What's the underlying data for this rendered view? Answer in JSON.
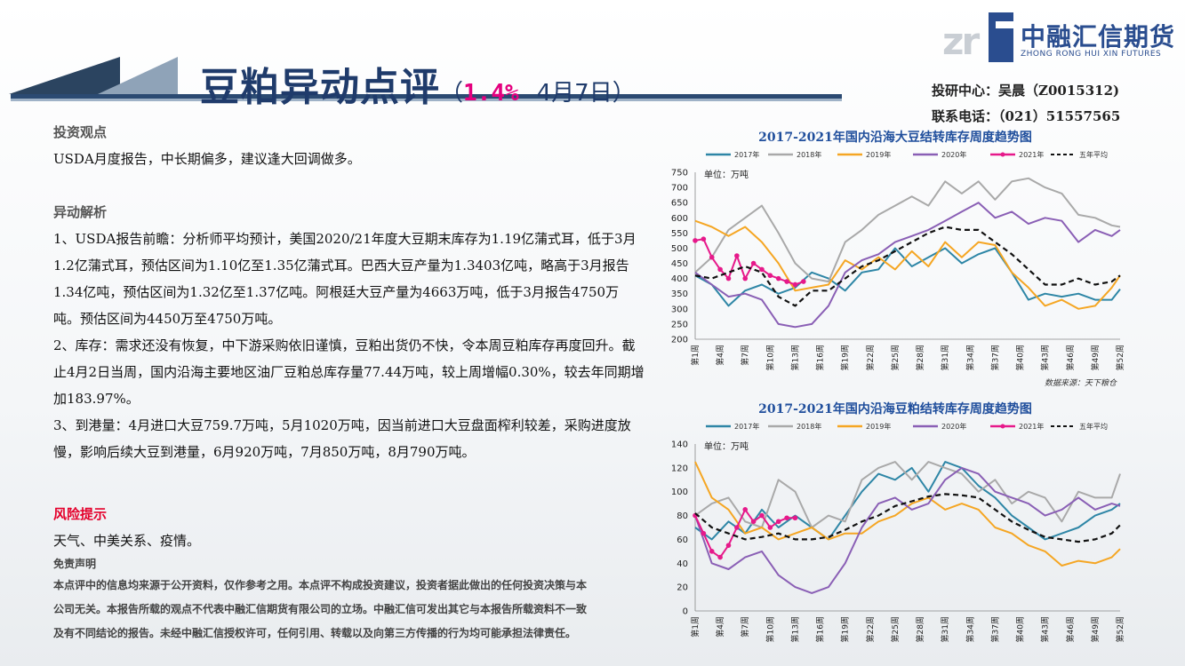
{
  "header": {
    "title_main": "豆粕异动点评",
    "paren_open": "（",
    "pct": "1.4%",
    "date": "4月7日）"
  },
  "logo": {
    "mark": "zr",
    "cn": "中融汇信期货",
    "en": "ZHONG RONG HUI XIN FUTURES"
  },
  "contact": {
    "line1": "投研中心：吴晨（Z0015312)",
    "line2": "联系电话：（021）51557565"
  },
  "content": {
    "view_head": "投资观点",
    "view_text": "USDA月度报告，中长期偏多，建议逢大回调做多。",
    "analysis_head": "异动解析",
    "p1": "1、USDA报告前瞻：分析师平均预计，美国2020/21年度大豆期末库存为1.19亿蒲式耳，低于3月1.2亿蒲式耳，预估区间为1.10亿至1.35亿蒲式耳。巴西大豆产量为1.3403亿吨，略高于3月报告1.34亿吨，预估区间为1.32亿至1.37亿吨。阿根廷大豆产量为4663万吨，低于3月报告4750万吨。预估区间为4450万至4750万吨。",
    "p2": "2、库存：需求还没有恢复，中下游采购依旧谨慎，豆粕出货仍不快，令本周豆粕库存再度回升。截止4月2日当周，国内沿海主要地区油厂豆粕总库存量77.44万吨，较上周增幅0.30%，较去年同期增加183.97%。",
    "p3": "3、到港量：4月进口大豆759.7万吨，5月1020万吨，因当前进口大豆盘面榨利较差，采购进度放慢，影响后续大豆到港量，6月920万吨，7月850万吨，8月790万吨。",
    "risk_head": "风险提示",
    "risk_text": "天气、中美关系、疫情。",
    "disc_head": "免责声明",
    "disc_text": "本点评中的信息均来源于公开资料，仅作参考之用。本点评不构成投资建议，投资者据此做出的任何投资决策与本公司无关。本报告所载的观点不代表中融汇信期货有限公司的立场。中融汇信可发出其它与本报告所载资料不一致及有不同结论的报告。未经中融汇信授权许可，任何引用、转载以及向第三方传播的行为均可能承担法律责任。"
  },
  "colors": {
    "2017": "#2e86a6",
    "2018": "#a9a9a9",
    "2019": "#f5a623",
    "2020": "#8a5fb5",
    "2021": "#e6198a",
    "avg": "#111111"
  },
  "chart_data": [
    {
      "type": "line",
      "title": "2017-2021年国内沿海大豆结转库存周度趋势图",
      "unit_label": "单位：万吨",
      "source": "数据来源：天下粮仓",
      "ylim": [
        200,
        750
      ],
      "yticks": [
        200,
        250,
        300,
        350,
        400,
        450,
        500,
        550,
        600,
        650,
        700,
        750
      ],
      "xticks": [
        "第1周",
        "第4周",
        "第7周",
        "第10周",
        "第13周",
        "第16周",
        "第19周",
        "第22周",
        "第25周",
        "第28周",
        "第31周",
        "第34周",
        "第37周",
        "第40周",
        "第43周",
        "第46周",
        "第49周",
        "第52周"
      ],
      "xtick_weeks": [
        1,
        4,
        7,
        10,
        13,
        16,
        19,
        22,
        25,
        28,
        31,
        34,
        37,
        40,
        43,
        46,
        49,
        52
      ],
      "legend_position": "top",
      "series": [
        {
          "name": "2017年",
          "key": "2017",
          "x": [
            1,
            3,
            5,
            7,
            9,
            11,
            13,
            15,
            17,
            19,
            21,
            23,
            25,
            27,
            29,
            31,
            33,
            35,
            37,
            39,
            41,
            43,
            45,
            47,
            49,
            51,
            52
          ],
          "values": [
            410,
            380,
            310,
            360,
            380,
            350,
            370,
            420,
            400,
            360,
            420,
            430,
            500,
            440,
            470,
            500,
            450,
            480,
            500,
            420,
            330,
            350,
            340,
            350,
            330,
            330,
            365
          ]
        },
        {
          "name": "2018年",
          "key": "2018",
          "x": [
            1,
            3,
            5,
            7,
            9,
            11,
            13,
            15,
            17,
            19,
            21,
            23,
            25,
            27,
            29,
            31,
            33,
            35,
            37,
            39,
            41,
            43,
            45,
            47,
            49,
            51,
            52
          ],
          "values": [
            420,
            470,
            560,
            600,
            640,
            550,
            450,
            400,
            390,
            520,
            560,
            610,
            640,
            670,
            640,
            720,
            680,
            720,
            660,
            720,
            730,
            700,
            680,
            610,
            600,
            575,
            570
          ]
        },
        {
          "name": "2019年",
          "key": "2019",
          "x": [
            1,
            3,
            5,
            7,
            9,
            11,
            13,
            15,
            17,
            19,
            21,
            23,
            25,
            27,
            29,
            31,
            33,
            35,
            37,
            39,
            41,
            43,
            45,
            47,
            49,
            51,
            52
          ],
          "values": [
            590,
            570,
            540,
            570,
            520,
            450,
            360,
            370,
            380,
            460,
            430,
            470,
            430,
            490,
            440,
            520,
            470,
            520,
            510,
            420,
            370,
            310,
            330,
            300,
            310,
            370,
            410
          ]
        },
        {
          "name": "2020年",
          "key": "2020",
          "x": [
            1,
            3,
            5,
            7,
            9,
            11,
            13,
            15,
            17,
            19,
            21,
            23,
            25,
            27,
            29,
            31,
            33,
            35,
            37,
            39,
            41,
            43,
            45,
            47,
            49,
            51,
            52
          ],
          "values": [
            420,
            380,
            340,
            350,
            330,
            250,
            240,
            250,
            310,
            420,
            460,
            480,
            520,
            540,
            560,
            590,
            620,
            650,
            600,
            620,
            580,
            600,
            590,
            520,
            560,
            540,
            560
          ]
        },
        {
          "name": "2021年",
          "key": "2021",
          "x": [
            1,
            2,
            3,
            4,
            5,
            6,
            7,
            8,
            9,
            10,
            11,
            12,
            13,
            14
          ],
          "values": [
            525,
            530,
            470,
            430,
            400,
            475,
            400,
            450,
            430,
            410,
            400,
            390,
            380,
            390
          ]
        },
        {
          "name": "五年平均",
          "key": "avg",
          "x": [
            1,
            3,
            5,
            7,
            9,
            11,
            13,
            15,
            17,
            19,
            21,
            23,
            25,
            27,
            29,
            31,
            33,
            35,
            37,
            39,
            41,
            43,
            45,
            47,
            49,
            51,
            52
          ],
          "values": [
            410,
            400,
            420,
            440,
            420,
            340,
            310,
            360,
            360,
            400,
            440,
            460,
            490,
            520,
            550,
            570,
            560,
            560,
            520,
            480,
            430,
            380,
            380,
            400,
            380,
            390,
            410
          ]
        }
      ]
    },
    {
      "type": "line",
      "title": "2017-2021年国内沿海豆粕结转库存周度趋势图",
      "unit_label": "单位：万吨",
      "ylim": [
        0,
        140
      ],
      "yticks": [
        0,
        20,
        40,
        60,
        80,
        100,
        120,
        140
      ],
      "xticks": [
        "第1周",
        "第4周",
        "第7周",
        "第10周",
        "第13周",
        "第16周",
        "第19周",
        "第22周",
        "第25周",
        "第28周",
        "第31周",
        "第34周",
        "第37周",
        "第40周",
        "第43周",
        "第46周",
        "第49周",
        "第52周"
      ],
      "xtick_weeks": [
        1,
        4,
        7,
        10,
        13,
        16,
        19,
        22,
        25,
        28,
        31,
        34,
        37,
        40,
        43,
        46,
        49,
        52
      ],
      "legend_position": "top",
      "series": [
        {
          "name": "2017年",
          "key": "2017",
          "x": [
            1,
            3,
            5,
            7,
            9,
            11,
            13,
            15,
            17,
            19,
            21,
            23,
            25,
            27,
            29,
            31,
            33,
            35,
            37,
            39,
            41,
            43,
            45,
            47,
            49,
            51,
            52
          ],
          "values": [
            70,
            60,
            75,
            65,
            85,
            70,
            80,
            70,
            60,
            80,
            100,
            115,
            110,
            120,
            100,
            125,
            120,
            105,
            95,
            80,
            70,
            60,
            65,
            70,
            80,
            85,
            90
          ]
        },
        {
          "name": "2018年",
          "key": "2018",
          "x": [
            1,
            3,
            5,
            7,
            9,
            11,
            13,
            15,
            17,
            19,
            21,
            23,
            25,
            27,
            29,
            31,
            33,
            35,
            37,
            39,
            41,
            43,
            45,
            47,
            49,
            51,
            52
          ],
          "values": [
            80,
            90,
            95,
            75,
            70,
            110,
            100,
            70,
            80,
            75,
            110,
            120,
            125,
            110,
            125,
            120,
            115,
            100,
            110,
            90,
            100,
            95,
            75,
            100,
            95,
            95,
            115
          ]
        },
        {
          "name": "2019年",
          "key": "2019",
          "x": [
            1,
            3,
            5,
            7,
            9,
            11,
            13,
            15,
            17,
            19,
            21,
            23,
            25,
            27,
            29,
            31,
            33,
            35,
            37,
            39,
            41,
            43,
            45,
            47,
            49,
            51,
            52
          ],
          "values": [
            125,
            95,
            85,
            65,
            70,
            60,
            65,
            70,
            60,
            65,
            65,
            75,
            80,
            90,
            95,
            85,
            90,
            85,
            70,
            65,
            55,
            50,
            38,
            42,
            40,
            45,
            52
          ]
        },
        {
          "name": "2020年",
          "key": "2020",
          "x": [
            1,
            3,
            5,
            7,
            9,
            11,
            13,
            15,
            17,
            19,
            21,
            23,
            25,
            27,
            29,
            31,
            33,
            35,
            37,
            39,
            41,
            43,
            45,
            47,
            49,
            51,
            52
          ],
          "values": [
            80,
            40,
            35,
            45,
            50,
            30,
            20,
            15,
            20,
            40,
            70,
            90,
            95,
            85,
            90,
            110,
            120,
            115,
            100,
            95,
            90,
            80,
            85,
            95,
            85,
            90,
            88
          ]
        },
        {
          "name": "2021年",
          "key": "2021",
          "x": [
            1,
            2,
            3,
            4,
            5,
            6,
            7,
            8,
            9,
            10,
            11,
            12,
            13
          ],
          "values": [
            80,
            65,
            50,
            45,
            55,
            70,
            85,
            75,
            80,
            70,
            75,
            78,
            78
          ]
        },
        {
          "name": "五年平均",
          "key": "avg",
          "x": [
            1,
            3,
            5,
            7,
            9,
            11,
            13,
            15,
            17,
            19,
            21,
            23,
            25,
            27,
            29,
            31,
            33,
            35,
            37,
            39,
            41,
            43,
            45,
            47,
            49,
            51,
            52
          ],
          "values": [
            82,
            70,
            65,
            60,
            62,
            65,
            60,
            60,
            62,
            68,
            75,
            80,
            88,
            92,
            96,
            98,
            97,
            95,
            85,
            75,
            68,
            62,
            60,
            58,
            60,
            65,
            72
          ]
        }
      ]
    }
  ]
}
